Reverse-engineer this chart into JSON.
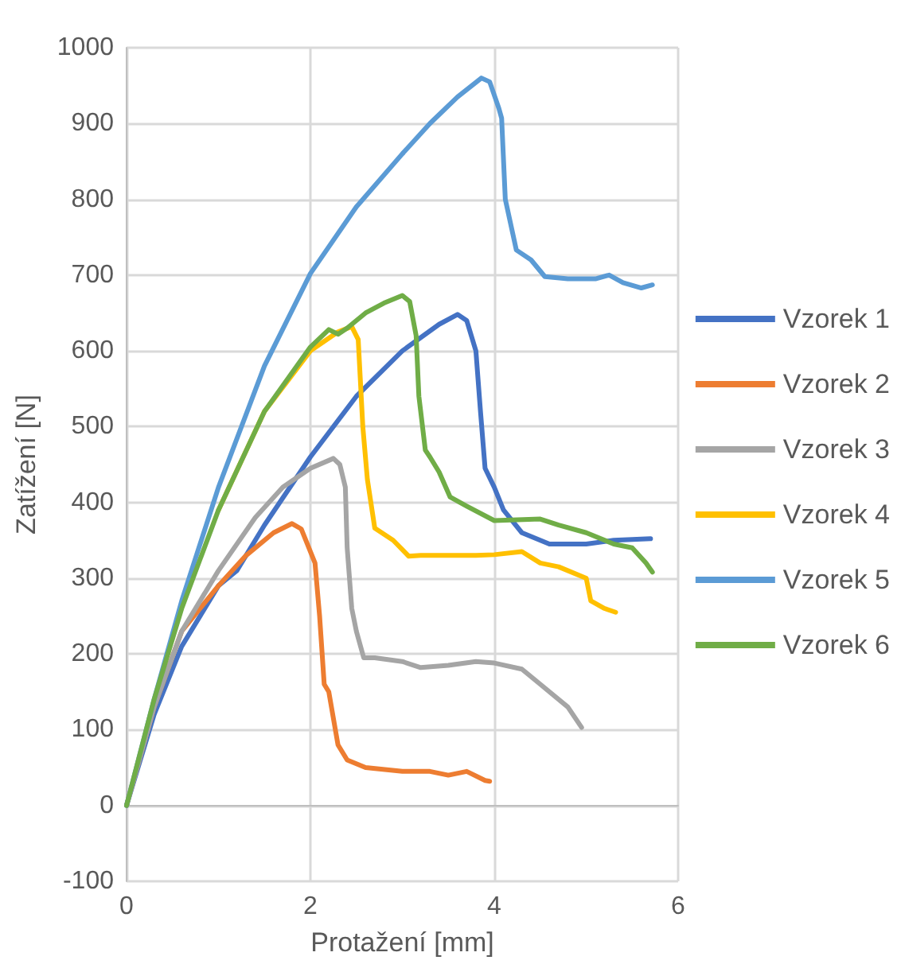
{
  "chart_data": {
    "type": "line",
    "xlabel": "Protažení [mm]",
    "ylabel": "Zatížení [N]",
    "xlim": [
      0,
      6
    ],
    "xticks": [
      0,
      2,
      4,
      6
    ],
    "ylim": [
      -100,
      1000
    ],
    "yticks": [
      -100,
      0,
      100,
      200,
      300,
      400,
      500,
      600,
      700,
      800,
      900,
      1000
    ],
    "grid": true,
    "legend": "right",
    "marker": "none",
    "line_style": "solid",
    "series": [
      {
        "name": "Vzorek 1",
        "color": "#4472c4",
        "x": [
          0,
          0.3,
          0.6,
          1,
          1.2,
          1.5,
          2,
          2.5,
          3,
          3.4,
          3.6,
          3.7,
          3.8,
          3.85,
          3.9,
          4,
          4.1,
          4.3,
          4.6,
          5,
          5.3,
          5.7
        ],
        "values": [
          0,
          120,
          210,
          290,
          310,
          370,
          460,
          540,
          600,
          635,
          648,
          640,
          600,
          520,
          445,
          420,
          390,
          360,
          345,
          345,
          350,
          352
        ]
      },
      {
        "name": "Vzorek 2",
        "color": "#ed7d31",
        "x": [
          0,
          0.3,
          0.6,
          1,
          1.3,
          1.6,
          1.8,
          1.9,
          2.05,
          2.1,
          2.15,
          2.2,
          2.3,
          2.4,
          2.6,
          3,
          3.3,
          3.5,
          3.7,
          3.9,
          3.95
        ],
        "values": [
          0,
          130,
          230,
          290,
          330,
          360,
          372,
          365,
          320,
          250,
          160,
          150,
          80,
          60,
          50,
          45,
          45,
          40,
          45,
          33,
          32
        ]
      },
      {
        "name": "Vzorek 3",
        "color": "#a5a5a5",
        "x": [
          0,
          0.3,
          0.6,
          1,
          1.4,
          1.7,
          2,
          2.25,
          2.32,
          2.38,
          2.4,
          2.45,
          2.5,
          2.58,
          2.7,
          3,
          3.2,
          3.5,
          3.8,
          4,
          4.3,
          4.5,
          4.8,
          4.95
        ],
        "values": [
          0,
          130,
          230,
          310,
          380,
          420,
          445,
          458,
          450,
          420,
          340,
          260,
          230,
          195,
          195,
          190,
          182,
          185,
          190,
          188,
          180,
          160,
          130,
          103
        ]
      },
      {
        "name": "Vzorek 4",
        "color": "#ffc000",
        "x": [
          1,
          1.5,
          2,
          2.3,
          2.45,
          2.52,
          2.57,
          2.62,
          2.7,
          2.9,
          3.07,
          3.2,
          3.5,
          3.8,
          4,
          4.3,
          4.5,
          4.7,
          5,
          5.05,
          5.2,
          5.32
        ],
        "values": [
          390,
          520,
          600,
          625,
          632,
          615,
          500,
          430,
          366,
          350,
          329,
          330,
          330,
          330,
          331,
          335,
          320,
          315,
          300,
          270,
          260,
          255
        ]
      },
      {
        "name": "Vzorek 5",
        "color": "#5b9bd5",
        "x": [
          0,
          0.3,
          0.6,
          1,
          1.5,
          2,
          2.5,
          3,
          3.3,
          3.6,
          3.86,
          3.95,
          4.05,
          4.08,
          4.12,
          4.24,
          4.4,
          4.55,
          4.8,
          5.1,
          5.25,
          5.4,
          5.6,
          5.72
        ],
        "values": [
          0,
          140,
          270,
          420,
          580,
          702,
          790,
          860,
          900,
          935,
          960,
          955,
          920,
          907,
          800,
          733,
          720,
          698,
          695,
          695,
          700,
          690,
          683,
          687
        ]
      },
      {
        "name": "Vzorek 6",
        "color": "#70ad47",
        "x": [
          0,
          0.3,
          0.6,
          1,
          1.5,
          2,
          2.2,
          2.3,
          2.4,
          2.6,
          2.8,
          3,
          3.08,
          3.15,
          3.18,
          3.25,
          3.3,
          3.4,
          3.52,
          3.7,
          4,
          4.5,
          4.7,
          5,
          5.3,
          5.5,
          5.65,
          5.72
        ],
        "values": [
          0,
          140,
          260,
          390,
          520,
          605,
          628,
          622,
          630,
          650,
          663,
          673,
          665,
          620,
          540,
          469,
          460,
          440,
          407,
          395,
          376,
          378,
          370,
          360,
          345,
          340,
          320,
          308
        ]
      }
    ]
  }
}
